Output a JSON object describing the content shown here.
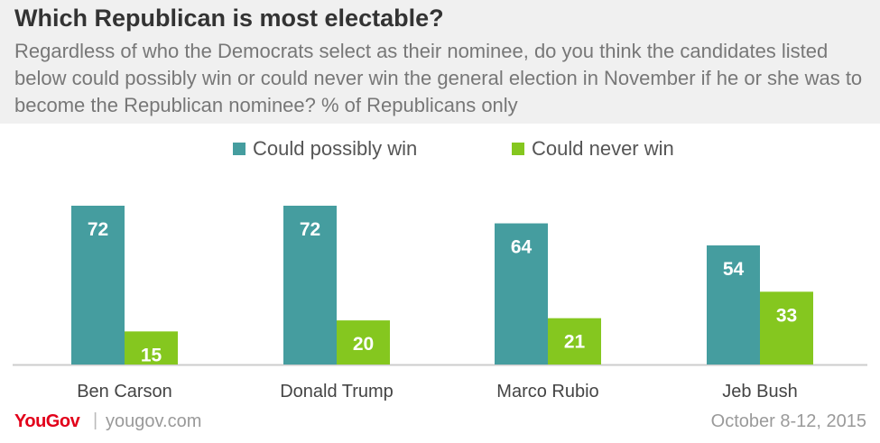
{
  "header": {
    "title": "Which Republican is most electable?",
    "subtitle": "Regardless of who the Democrats select as their nominee, do you think the candidates listed below could possibly win or could never win the general election in November if he or she was to become the Republican nominee? % of Republicans only"
  },
  "colors": {
    "possibly": "#459d9f",
    "never": "#85c71f"
  },
  "chart_data": {
    "type": "bar",
    "categories": [
      "Ben Carson",
      "Donald Trump",
      "Marco Rubio",
      "Jeb Bush"
    ],
    "series": [
      {
        "name": "Could possibly win",
        "values": [
          72,
          72,
          64,
          54
        ]
      },
      {
        "name": "Could never win",
        "values": [
          15,
          20,
          21,
          33
        ]
      }
    ],
    "ylim": [
      0,
      80
    ],
    "grid": false,
    "legend_position": "top-center"
  },
  "footer": {
    "brand": "YouGov",
    "url": "yougov.com",
    "date": "October 8-12, 2015"
  }
}
